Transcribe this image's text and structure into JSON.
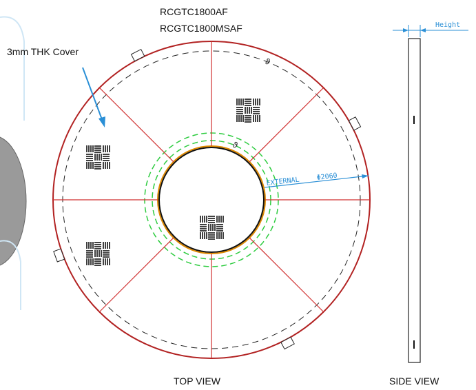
{
  "labels": {
    "model_1": "RCGTC1800AF",
    "model_2": "RCGTC1800MSAF",
    "cover": "3mm THK Cover",
    "external": "EXTERNAL",
    "diameter": "Φ2060",
    "height": "Height",
    "top_view": "TOP VIEW",
    "side_view": "SIDE VIEW"
  }
}
